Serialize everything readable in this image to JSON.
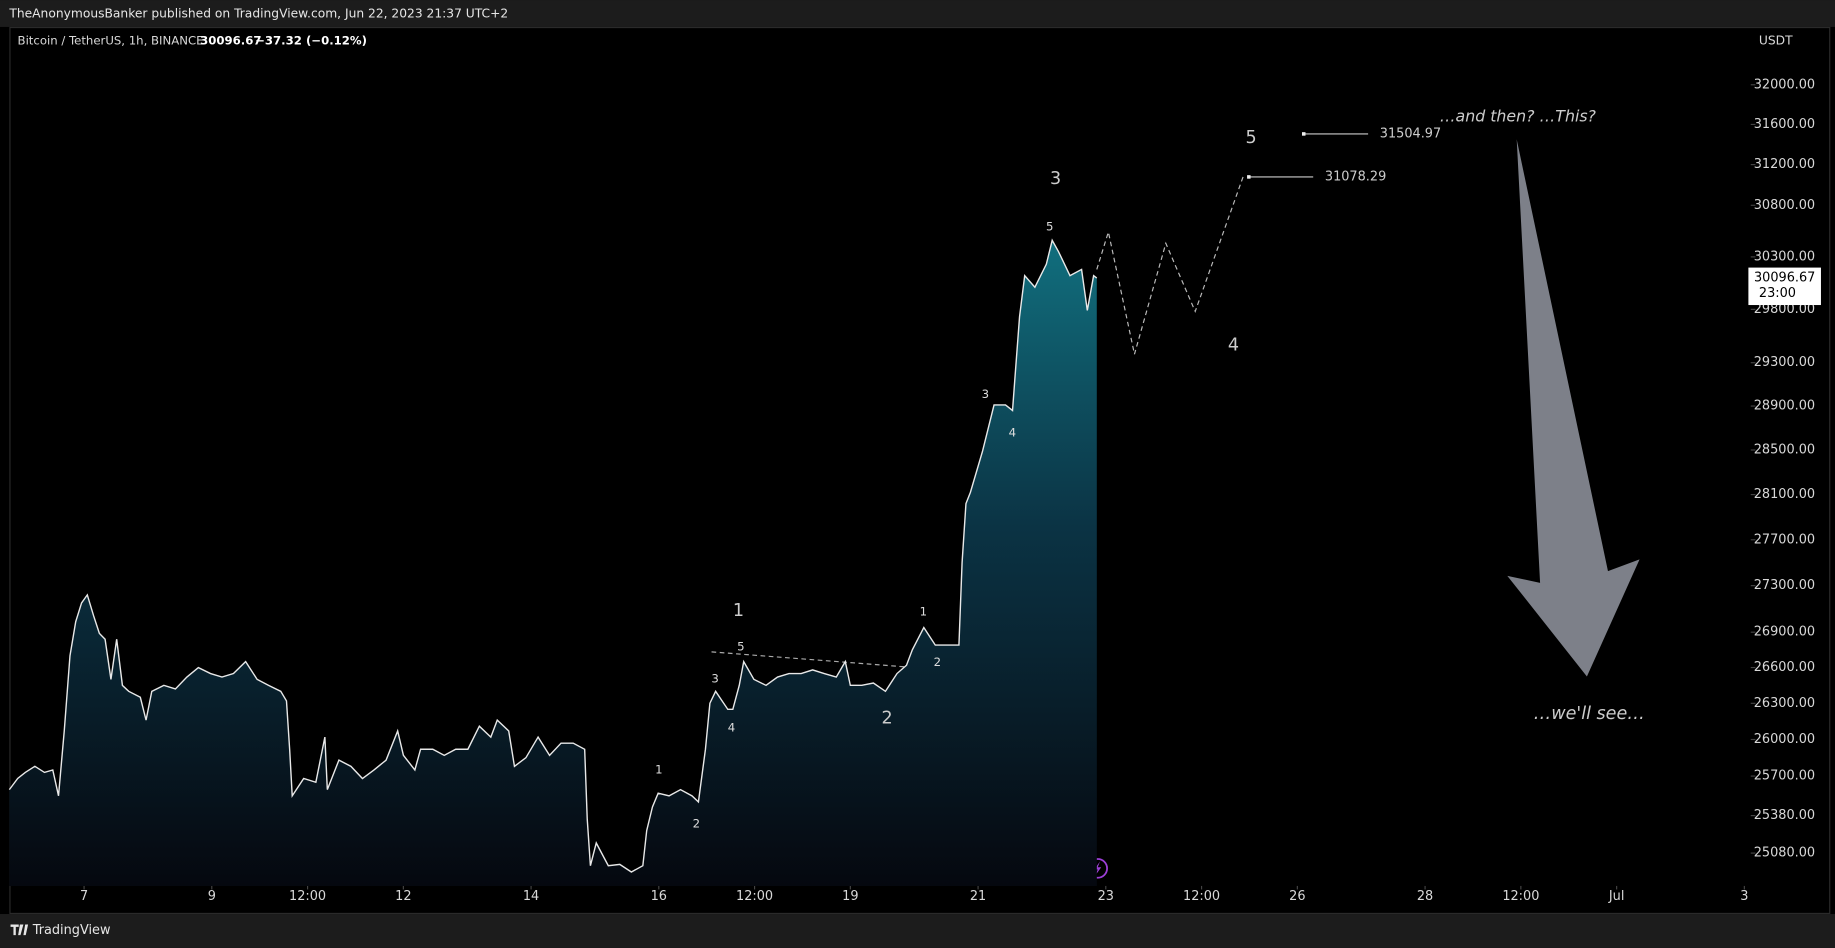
{
  "header": {
    "publisher": "TheAnonymousBanker published on TradingView.com, Jun 22, 2023 21:37 UTC+2",
    "symbol": "Bitcoin / TetherUS, 1h, BINANCE",
    "last": "30096.67",
    "change": "−37.32 (−0.12%)",
    "currency": "USDT",
    "brand": "TradingView"
  },
  "chart_data": {
    "type": "area",
    "log_scale": true,
    "grid": false,
    "color": "#e8e8e8",
    "x": [
      5.83,
      5.96,
      6.08,
      6.23,
      6.38,
      6.51,
      6.6,
      6.69,
      6.78,
      6.87,
      6.96,
      7.05,
      7.15,
      7.24,
      7.33,
      7.42,
      7.51,
      7.6,
      7.7,
      7.88,
      7.97,
      8.06,
      8.25,
      8.43,
      8.61,
      8.79,
      8.98,
      9.16,
      9.34,
      9.53,
      9.71,
      9.89,
      10.08,
      10.17,
      10.22,
      10.26,
      10.44,
      10.63,
      10.77,
      10.81,
      10.99,
      11.18,
      11.36,
      11.54,
      11.73,
      11.91,
      12.0,
      12.18,
      12.27,
      12.46,
      12.64,
      12.82,
      13.01,
      13.19,
      13.37,
      13.47,
      13.65,
      13.74,
      13.92,
      14.11,
      14.29,
      14.47,
      14.66,
      14.84,
      14.88,
      14.93,
      15.02,
      15.21,
      15.39,
      15.57,
      15.75,
      15.81,
      15.9,
      15.99,
      16.16,
      16.34,
      16.52,
      16.62,
      16.73,
      16.8,
      16.89,
      17.08,
      17.16,
      17.26,
      17.33,
      17.49,
      17.68,
      17.86,
      18.04,
      18.23,
      18.41,
      18.59,
      18.78,
      18.92,
      19.0,
      19.18,
      19.36,
      19.55,
      19.73,
      19.88,
      19.97,
      20.15,
      20.33,
      20.52,
      20.7,
      20.75,
      20.81,
      20.88,
      21.07,
      21.25,
      21.43,
      21.54,
      21.58,
      21.65,
      21.73,
      21.89,
      22.07,
      22.16,
      22.26,
      22.44,
      22.62,
      22.71,
      22.81,
      22.86
    ],
    "values": [
      25590,
      25680,
      25730,
      25780,
      25730,
      25750,
      25540,
      26070,
      26700,
      26990,
      27150,
      27220,
      27040,
      26890,
      26840,
      26500,
      26840,
      26450,
      26400,
      26350,
      26160,
      26400,
      26450,
      26420,
      26520,
      26600,
      26550,
      26520,
      26550,
      26650,
      26500,
      26450,
      26400,
      26320,
      25920,
      25540,
      25680,
      25650,
      26020,
      25590,
      25830,
      25780,
      25680,
      25750,
      25830,
      26070,
      25870,
      25750,
      25920,
      25920,
      25870,
      25920,
      25920,
      26110,
      26020,
      26160,
      26070,
      25780,
      25850,
      26020,
      25870,
      25970,
      25970,
      25920,
      25350,
      24980,
      25160,
      24980,
      24990,
      24930,
      24980,
      25260,
      25450,
      25560,
      25540,
      25590,
      25540,
      25490,
      25920,
      26300,
      26400,
      26250,
      26250,
      26450,
      26650,
      26500,
      26450,
      26520,
      26550,
      26550,
      26580,
      26550,
      26520,
      26650,
      26450,
      26450,
      26470,
      26400,
      26550,
      26620,
      26750,
      26940,
      26790,
      26790,
      26790,
      27500,
      28020,
      28120,
      28490,
      28910,
      28910,
      28860,
      29180,
      29730,
      30120,
      30010,
      30230,
      30460,
      30350,
      30120,
      30180,
      29790,
      30120,
      30096.67
    ],
    "ylim": [
      24820,
      32580
    ],
    "yticks": [
      {
        "value": 32000,
        "label": "32000.00"
      },
      {
        "value": 31600,
        "label": "31600.00"
      },
      {
        "value": 31200,
        "label": "31200.00"
      },
      {
        "value": 30800,
        "label": "30800.00"
      },
      {
        "value": 30300,
        "label": "30300.00"
      },
      {
        "value": 29800,
        "label": "29800.00"
      },
      {
        "value": 29300,
        "label": "29300.00"
      },
      {
        "value": 28900,
        "label": "28900.00"
      },
      {
        "value": 28500,
        "label": "28500.00"
      },
      {
        "value": 28100,
        "label": "28100.00"
      },
      {
        "value": 27700,
        "label": "27700.00"
      },
      {
        "value": 27300,
        "label": "27300.00"
      },
      {
        "value": 26900,
        "label": "26900.00"
      },
      {
        "value": 26600,
        "label": "26600.00"
      },
      {
        "value": 26300,
        "label": "26300.00"
      },
      {
        "value": 26000,
        "label": "26000.00"
      },
      {
        "value": 25700,
        "label": "25700.00"
      },
      {
        "value": 25380,
        "label": "25380.00"
      },
      {
        "value": 25080,
        "label": "25080.00"
      }
    ],
    "xlim": [
      5.83,
      33.1
    ],
    "xticks": [
      7,
      9,
      {
        "value": 10.5,
        "label": "12:00"
      },
      12,
      14,
      16,
      {
        "value": 17.5,
        "label": "12:00"
      },
      19,
      21,
      23,
      {
        "value": 24.5,
        "label": "12:00"
      },
      26,
      28,
      {
        "value": 29.5,
        "label": "12:00"
      },
      {
        "value": 31,
        "label": "Jul"
      },
      {
        "value": 33,
        "label": "3"
      }
    ],
    "price_tag": {
      "value": 30096.67,
      "time": "23:00"
    },
    "projection": {
      "x": [
        22.86,
        23.04,
        23.45,
        23.94,
        24.4,
        25.15
      ],
      "values": [
        30180,
        30540,
        29380,
        30430,
        29780,
        31078.29
      ]
    },
    "targets": [
      {
        "x": 25.24,
        "value": 31078.29,
        "label": "31078.29"
      },
      {
        "x": 26.1,
        "value": 31504.97,
        "label": "31504.97"
      }
    ],
    "waves": [
      "3",
      "5",
      "4",
      "5",
      "3",
      "4",
      "1",
      "5",
      "3",
      "4",
      "2",
      "1",
      "2",
      "1",
      "2"
    ],
    "notes": [
      "…and then? …This?",
      "…we'll see…"
    ]
  }
}
